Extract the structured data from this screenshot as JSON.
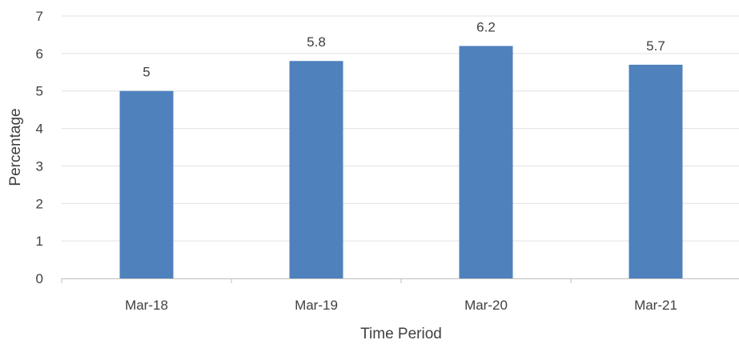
{
  "chart_data": {
    "type": "bar",
    "title": "",
    "xlabel": "Time Period",
    "ylabel": "Percentage",
    "categories": [
      "Mar-18",
      "Mar-19",
      "Mar-20",
      "Mar-21"
    ],
    "values": [
      5,
      5.8,
      6.2,
      5.7
    ],
    "data_labels": [
      "5",
      "5.8",
      "6.2",
      "5.7"
    ],
    "ylim": [
      0,
      7
    ],
    "yticks": [
      "0",
      "1",
      "2",
      "3",
      "4",
      "5",
      "6",
      "7"
    ],
    "grid": true,
    "legend": "none",
    "colors": {
      "bar": "#4f81bd",
      "grid": "#e0e0e0",
      "axis": "#bfbfbf",
      "text": "#404040"
    }
  }
}
